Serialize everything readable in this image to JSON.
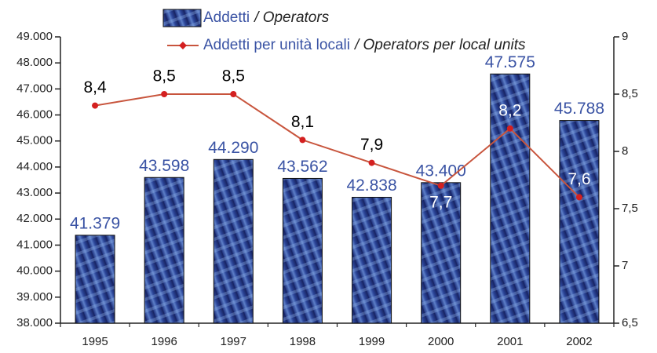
{
  "chart_data": {
    "type": "bar-line",
    "categories": [
      "1995",
      "1996",
      "1997",
      "1998",
      "1999",
      "2000",
      "2001",
      "2002"
    ],
    "series": [
      {
        "name": "Addetti",
        "name_en": "/ Operators",
        "type": "bar",
        "color": "#2e4a9e",
        "label_color": "#3a53a4",
        "values": [
          41379,
          43598,
          44290,
          43562,
          42838,
          43400,
          47575,
          45788
        ],
        "value_labels": [
          "41.379",
          "43.598",
          "44.290",
          "43.562",
          "42.838",
          "43.400",
          "47.575",
          "45.788"
        ]
      },
      {
        "name": "Addetti per unità locali",
        "name_en": "/ Operators per local units",
        "type": "line",
        "axis": "y2",
        "color": "#c8553d",
        "marker_color": "#d42020",
        "values": [
          8.4,
          8.5,
          8.5,
          8.1,
          7.9,
          7.7,
          8.2,
          7.6
        ],
        "value_labels": [
          "8,4",
          "8,5",
          "8,5",
          "8,1",
          "7,9",
          "7,7",
          "8,2",
          "7,6"
        ]
      }
    ],
    "ylim": [
      38000,
      49000
    ],
    "yticks": [
      {
        "value": 38000,
        "label": "38.000"
      },
      {
        "value": 39000,
        "label": "39.000"
      },
      {
        "value": 40000,
        "label": "40.000"
      },
      {
        "value": 41000,
        "label": "41.000"
      },
      {
        "value": 42000,
        "label": "42.000"
      },
      {
        "value": 43000,
        "label": "43.000"
      },
      {
        "value": 44000,
        "label": "44.000"
      },
      {
        "value": 45000,
        "label": "45.000"
      },
      {
        "value": 46000,
        "label": "46.000"
      },
      {
        "value": 47000,
        "label": "47.000"
      },
      {
        "value": 48000,
        "label": "48.000"
      },
      {
        "value": 49000,
        "label": "49.000"
      }
    ],
    "y2lim": [
      6.5,
      9
    ],
    "y2ticks": [
      {
        "value": 6.5,
        "label": "6,5"
      },
      7,
      {
        "value": 7.5,
        "label": "7,5"
      },
      8,
      {
        "value": 8.5,
        "label": "8,5"
      },
      9
    ],
    "grid": false
  }
}
